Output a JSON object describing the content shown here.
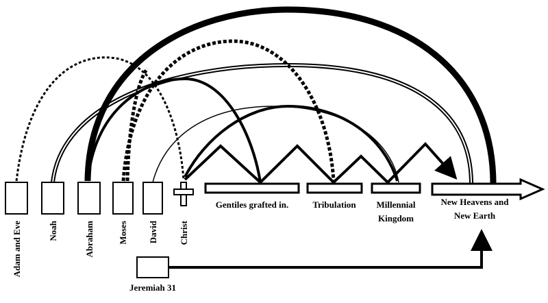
{
  "nodes": [
    {
      "label": "Adam and Eve"
    },
    {
      "label": "Noah"
    },
    {
      "label": "Abraham"
    },
    {
      "label": "Moses"
    },
    {
      "label": "David"
    },
    {
      "label": "Christ"
    }
  ],
  "periods": [
    {
      "lines": [
        "Gentiles grafted in."
      ]
    },
    {
      "lines": [
        "Tribulation"
      ]
    },
    {
      "lines": [
        "Millennial",
        "Kingdom"
      ]
    },
    {
      "lines": [
        "New Heavens and",
        "New Earth"
      ]
    }
  ],
  "covenant": {
    "label": "Jeremiah 31"
  }
}
